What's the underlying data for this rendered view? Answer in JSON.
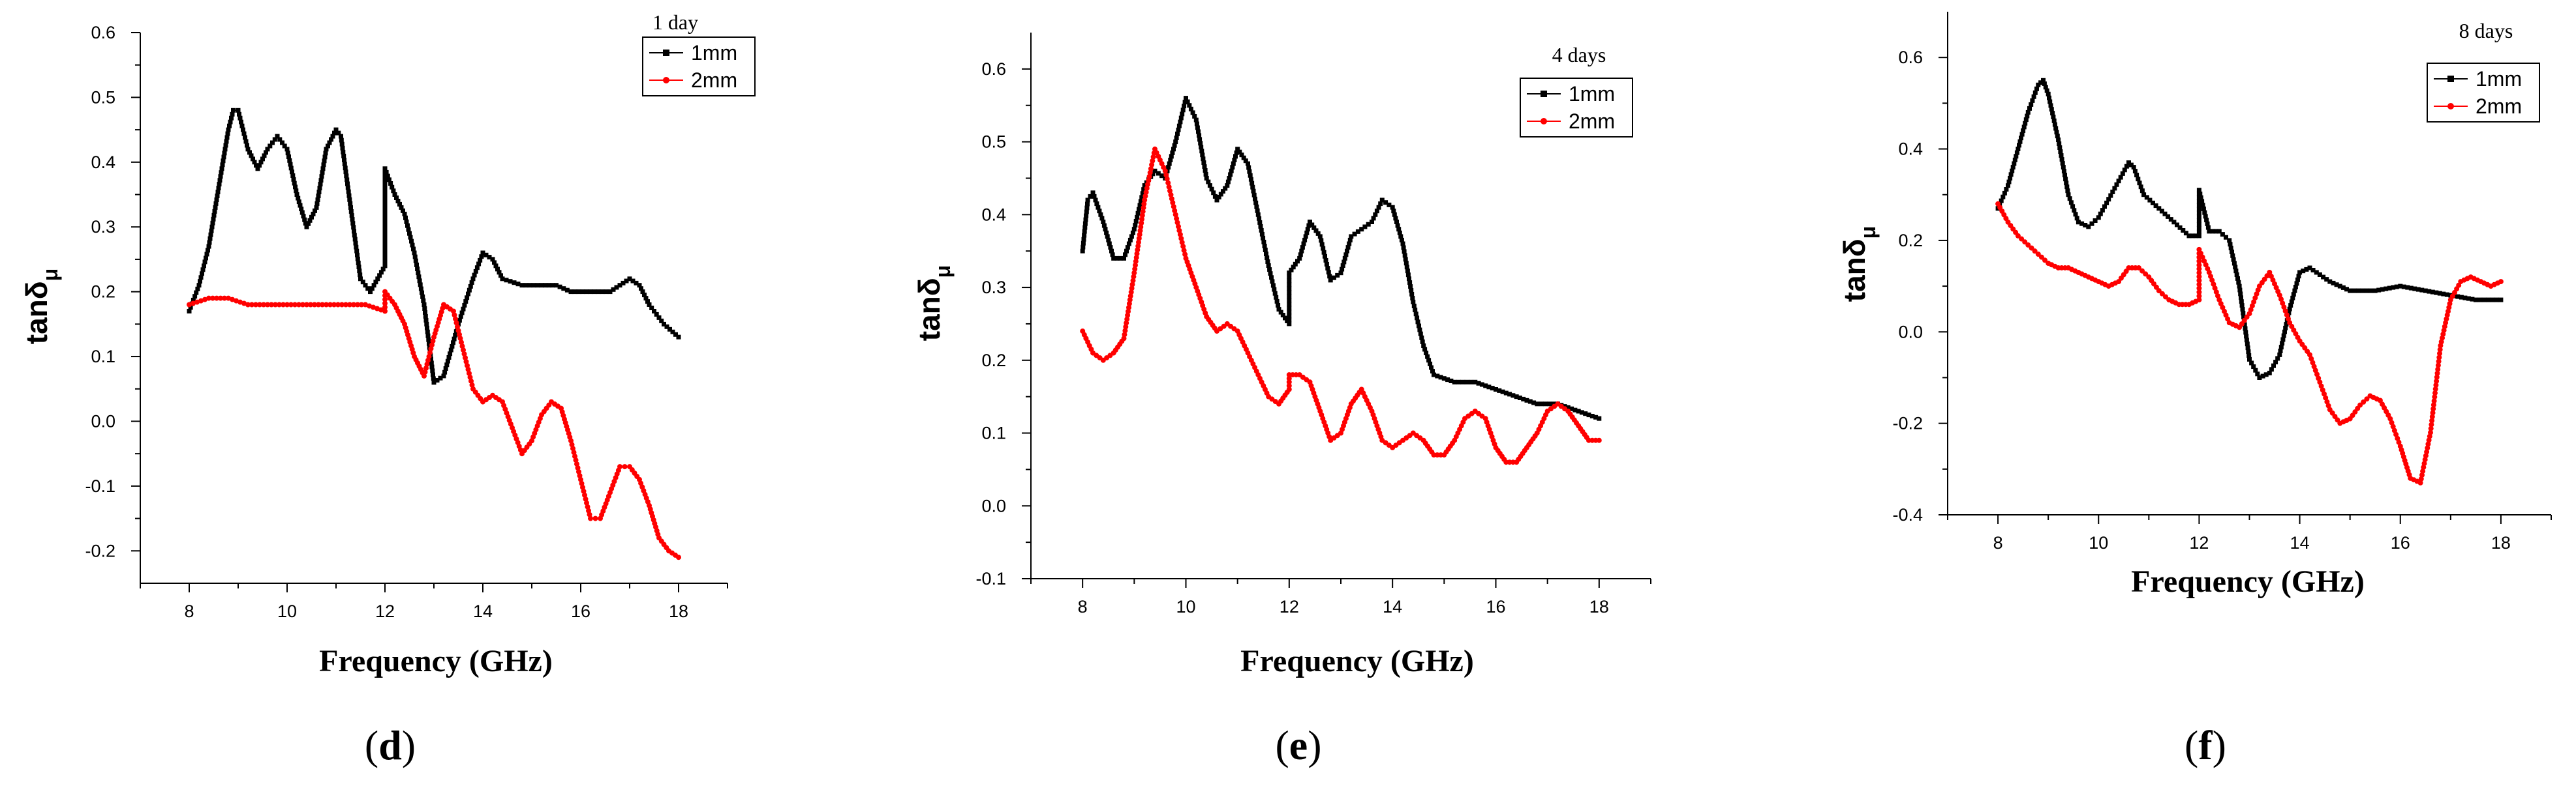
{
  "chart_data": [
    {
      "type": "scatter",
      "panel_label": "d",
      "title": "1 day",
      "xlabel": "Frequency (GHz)",
      "ylabel_main": "tanδ",
      "ylabel_sub": "μ",
      "xlim": [
        7.0,
        19.0
      ],
      "ylim": [
        -0.25,
        0.6
      ],
      "xticks": [
        8,
        10,
        12,
        14,
        16,
        18
      ],
      "xtick_labels": [
        "8",
        "10",
        "12",
        "14",
        "16",
        "18"
      ],
      "yticks": [
        -0.2,
        -0.1,
        0.0,
        0.1,
        0.2,
        0.3,
        0.4,
        0.5,
        0.6
      ],
      "ytick_labels": [
        "-0.2",
        "-0.1",
        "0.0",
        "0.1",
        "0.2",
        "0.3",
        "0.4",
        "0.5",
        "0.6"
      ],
      "legend": [
        "1mm",
        "2mm"
      ],
      "legend_position": "top-right",
      "series": [
        {
          "name": "1mm",
          "color": "#000000",
          "marker": "square",
          "x": [
            8.0,
            8.2,
            8.4,
            8.6,
            8.8,
            8.9,
            9.0,
            9.2,
            9.4,
            9.6,
            9.8,
            10.0,
            10.2,
            10.4,
            10.6,
            10.8,
            11.0,
            11.1,
            11.3,
            11.5,
            11.7,
            12.0,
            12.0,
            12.2,
            12.4,
            12.6,
            12.8,
            13.0,
            13.2,
            13.5,
            13.8,
            14.0,
            14.2,
            14.4,
            14.8,
            15.2,
            15.5,
            15.8,
            16.2,
            16.6,
            16.8,
            17.0,
            17.2,
            17.4,
            17.7,
            18.0
          ],
          "y": [
            0.17,
            0.21,
            0.27,
            0.36,
            0.45,
            0.48,
            0.48,
            0.42,
            0.39,
            0.42,
            0.44,
            0.42,
            0.35,
            0.3,
            0.33,
            0.42,
            0.45,
            0.44,
            0.33,
            0.22,
            0.2,
            0.24,
            0.39,
            0.35,
            0.32,
            0.26,
            0.18,
            0.06,
            0.07,
            0.15,
            0.22,
            0.26,
            0.25,
            0.22,
            0.21,
            0.21,
            0.21,
            0.2,
            0.2,
            0.2,
            0.21,
            0.22,
            0.21,
            0.18,
            0.15,
            0.13
          ]
        },
        {
          "name": "2mm",
          "color": "#ff0000",
          "marker": "circle",
          "x": [
            8.0,
            8.4,
            8.8,
            9.2,
            9.6,
            10.0,
            10.4,
            10.8,
            11.2,
            11.6,
            12.0,
            12.0,
            12.2,
            12.4,
            12.6,
            12.8,
            13.0,
            13.2,
            13.4,
            13.6,
            13.8,
            14.0,
            14.2,
            14.4,
            14.6,
            14.8,
            15.0,
            15.2,
            15.4,
            15.6,
            15.8,
            16.0,
            16.2,
            16.4,
            16.6,
            16.8,
            17.0,
            17.2,
            17.4,
            17.6,
            17.8,
            18.0
          ],
          "y": [
            0.18,
            0.19,
            0.19,
            0.18,
            0.18,
            0.18,
            0.18,
            0.18,
            0.18,
            0.18,
            0.17,
            0.2,
            0.18,
            0.15,
            0.1,
            0.07,
            0.13,
            0.18,
            0.17,
            0.11,
            0.05,
            0.03,
            0.04,
            0.03,
            -0.01,
            -0.05,
            -0.03,
            0.01,
            0.03,
            0.02,
            -0.03,
            -0.09,
            -0.15,
            -0.15,
            -0.11,
            -0.07,
            -0.07,
            -0.09,
            -0.13,
            -0.18,
            -0.2,
            -0.21
          ]
        }
      ]
    },
    {
      "type": "scatter",
      "panel_label": "e",
      "title": "4 days",
      "xlabel": "Frequency (GHz)",
      "ylabel_main": "tanδ",
      "ylabel_sub": "μ",
      "xlim": [
        7.0,
        19.0
      ],
      "ylim": [
        -0.1,
        0.65
      ],
      "xticks": [
        8,
        10,
        12,
        14,
        16,
        18
      ],
      "xtick_labels": [
        "8",
        "10",
        "12",
        "14",
        "16",
        "18"
      ],
      "yticks": [
        -0.1,
        0.0,
        0.1,
        0.2,
        0.3,
        0.4,
        0.5,
        0.6
      ],
      "ytick_labels": [
        "-0.1",
        "0.0",
        "0.1",
        "0.2",
        "0.3",
        "0.4",
        "0.5",
        "0.6"
      ],
      "legend": [
        "1mm",
        "2mm"
      ],
      "legend_position": "top-right",
      "series": [
        {
          "name": "1mm",
          "color": "#000000",
          "marker": "square",
          "x": [
            8.0,
            8.1,
            8.2,
            8.4,
            8.6,
            8.8,
            9.0,
            9.2,
            9.4,
            9.6,
            9.8,
            10.0,
            10.2,
            10.4,
            10.6,
            10.8,
            11.0,
            11.2,
            11.4,
            11.6,
            11.8,
            12.0,
            12.0,
            12.2,
            12.4,
            12.6,
            12.8,
            13.0,
            13.2,
            13.4,
            13.6,
            13.8,
            14.0,
            14.2,
            14.4,
            14.6,
            14.8,
            15.2,
            15.6,
            16.0,
            16.4,
            16.8,
            17.2,
            17.6,
            18.0
          ],
          "y": [
            0.35,
            0.42,
            0.43,
            0.39,
            0.34,
            0.34,
            0.38,
            0.44,
            0.46,
            0.45,
            0.5,
            0.56,
            0.53,
            0.45,
            0.42,
            0.44,
            0.49,
            0.47,
            0.4,
            0.33,
            0.27,
            0.25,
            0.32,
            0.34,
            0.39,
            0.37,
            0.31,
            0.32,
            0.37,
            0.38,
            0.39,
            0.42,
            0.41,
            0.36,
            0.28,
            0.22,
            0.18,
            0.17,
            0.17,
            0.16,
            0.15,
            0.14,
            0.14,
            0.13,
            0.12
          ]
        },
        {
          "name": "2mm",
          "color": "#ff0000",
          "marker": "circle",
          "x": [
            8.0,
            8.2,
            8.4,
            8.6,
            8.8,
            9.0,
            9.2,
            9.4,
            9.6,
            9.8,
            10.0,
            10.2,
            10.4,
            10.6,
            10.8,
            11.0,
            11.2,
            11.4,
            11.6,
            11.8,
            12.0,
            12.0,
            12.2,
            12.4,
            12.6,
            12.8,
            13.0,
            13.2,
            13.4,
            13.6,
            13.8,
            14.0,
            14.2,
            14.4,
            14.6,
            14.8,
            15.0,
            15.2,
            15.4,
            15.6,
            15.8,
            16.0,
            16.2,
            16.4,
            16.6,
            16.8,
            17.0,
            17.2,
            17.4,
            17.6,
            17.8,
            18.0
          ],
          "y": [
            0.24,
            0.21,
            0.2,
            0.21,
            0.23,
            0.32,
            0.42,
            0.49,
            0.46,
            0.4,
            0.34,
            0.3,
            0.26,
            0.24,
            0.25,
            0.24,
            0.21,
            0.18,
            0.15,
            0.14,
            0.16,
            0.18,
            0.18,
            0.17,
            0.13,
            0.09,
            0.1,
            0.14,
            0.16,
            0.13,
            0.09,
            0.08,
            0.09,
            0.1,
            0.09,
            0.07,
            0.07,
            0.09,
            0.12,
            0.13,
            0.12,
            0.08,
            0.06,
            0.06,
            0.08,
            0.1,
            0.13,
            0.14,
            0.13,
            0.11,
            0.09,
            0.09
          ]
        }
      ]
    },
    {
      "type": "scatter",
      "panel_label": "f",
      "title": "8 days",
      "xlabel": "Frequency (GHz)",
      "ylabel_main": "tanδ",
      "ylabel_sub": "μ",
      "xlim": [
        7.0,
        19.0
      ],
      "ylim": [
        -0.4,
        0.7
      ],
      "xticks": [
        8,
        10,
        12,
        14,
        16,
        18
      ],
      "xtick_labels": [
        "8",
        "10",
        "12",
        "14",
        "16",
        "18"
      ],
      "yticks": [
        -0.4,
        -0.2,
        0.0,
        0.2,
        0.4,
        0.6
      ],
      "ytick_labels": [
        "-0.4",
        "-0.2",
        "0.0",
        "0.2",
        "0.4",
        "0.6"
      ],
      "legend": [
        "1mm",
        "2mm"
      ],
      "legend_position": "top-right",
      "series": [
        {
          "name": "1mm",
          "color": "#000000",
          "marker": "square",
          "x": [
            8.0,
            8.2,
            8.4,
            8.6,
            8.8,
            8.9,
            9.0,
            9.2,
            9.4,
            9.6,
            9.8,
            10.0,
            10.2,
            10.4,
            10.6,
            10.7,
            10.9,
            11.2,
            11.5,
            11.8,
            12.0,
            12.0,
            12.2,
            12.4,
            12.6,
            12.8,
            13.0,
            13.2,
            13.4,
            13.6,
            13.8,
            14.0,
            14.2,
            14.6,
            15.0,
            15.5,
            16.0,
            16.5,
            17.0,
            17.5,
            18.0
          ],
          "y": [
            0.27,
            0.32,
            0.4,
            0.48,
            0.54,
            0.55,
            0.52,
            0.42,
            0.3,
            0.24,
            0.23,
            0.25,
            0.29,
            0.33,
            0.37,
            0.36,
            0.3,
            0.27,
            0.24,
            0.21,
            0.21,
            0.31,
            0.22,
            0.22,
            0.2,
            0.1,
            -0.06,
            -0.1,
            -0.09,
            -0.05,
            0.05,
            0.13,
            0.14,
            0.11,
            0.09,
            0.09,
            0.1,
            0.09,
            0.08,
            0.07,
            0.07
          ]
        },
        {
          "name": "2mm",
          "color": "#ff0000",
          "marker": "circle",
          "x": [
            8.0,
            8.2,
            8.4,
            8.6,
            8.8,
            9.0,
            9.2,
            9.4,
            9.6,
            9.8,
            10.0,
            10.2,
            10.4,
            10.6,
            10.8,
            11.0,
            11.2,
            11.4,
            11.6,
            11.8,
            12.0,
            12.0,
            12.2,
            12.4,
            12.6,
            12.8,
            13.0,
            13.2,
            13.4,
            13.6,
            13.8,
            14.0,
            14.2,
            14.4,
            14.6,
            14.8,
            15.0,
            15.2,
            15.4,
            15.6,
            15.8,
            16.0,
            16.2,
            16.4,
            16.6,
            16.8,
            17.0,
            17.2,
            17.4,
            17.6,
            17.8,
            18.0
          ],
          "y": [
            0.28,
            0.24,
            0.21,
            0.19,
            0.17,
            0.15,
            0.14,
            0.14,
            0.13,
            0.12,
            0.11,
            0.1,
            0.11,
            0.14,
            0.14,
            0.12,
            0.09,
            0.07,
            0.06,
            0.06,
            0.07,
            0.18,
            0.13,
            0.07,
            0.02,
            0.01,
            0.04,
            0.1,
            0.13,
            0.08,
            0.02,
            -0.02,
            -0.05,
            -0.11,
            -0.17,
            -0.2,
            -0.19,
            -0.16,
            -0.14,
            -0.15,
            -0.19,
            -0.25,
            -0.32,
            -0.33,
            -0.22,
            -0.03,
            0.07,
            0.11,
            0.12,
            0.11,
            0.1,
            0.11
          ]
        }
      ]
    }
  ]
}
